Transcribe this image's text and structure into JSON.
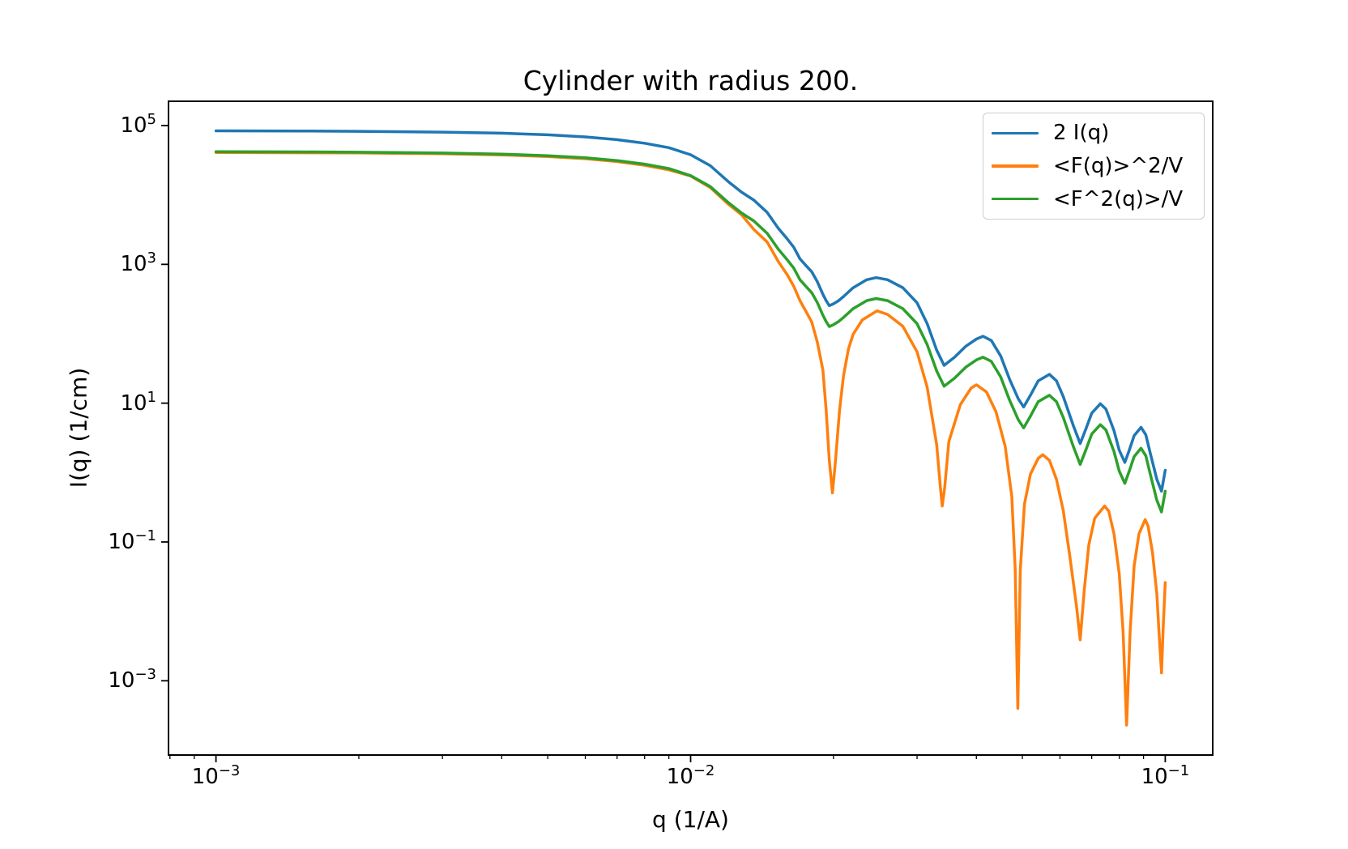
{
  "figure": {
    "title": "Cylinder with radius 200."
  },
  "axes": {
    "xlabel": "q (1/A)",
    "ylabel": "I(q) (1/cm)",
    "x_scale": "log",
    "y_scale": "log",
    "x_log_range": [
      -3.1,
      -0.9
    ],
    "y_log_range": [
      -4.07,
      5.35
    ],
    "x_tick_exponents": [
      -3,
      -2,
      -1
    ],
    "y_tick_exponents": [
      5,
      3,
      1,
      -1,
      -3
    ],
    "x_minor_ticks": true,
    "y_minor_ticks": false,
    "grid": false
  },
  "chart_data": {
    "type": "line",
    "title": "Cylinder with radius 200.",
    "xlabel": "q (1/A)",
    "ylabel": "I(q) (1/cm)",
    "x_scale": "log",
    "y_scale": "log",
    "xlim": [
      0.00079,
      0.126
    ],
    "ylim": [
      8.5e-05,
      224000
    ],
    "legend_position": "upper right",
    "grid": false,
    "series": [
      {
        "name": "2 I(q)",
        "color": "#1f77b4",
        "points": [
          [
            0.001,
            84000
          ],
          [
            0.0015,
            83400
          ],
          [
            0.002,
            82600
          ],
          [
            0.003,
            80400
          ],
          [
            0.004,
            77600
          ],
          [
            0.005,
            73600
          ],
          [
            0.006,
            68600
          ],
          [
            0.007,
            62600
          ],
          [
            0.008,
            55600
          ],
          [
            0.009,
            48000
          ],
          [
            0.01,
            38000
          ],
          [
            0.011,
            26400
          ],
          [
            0.012,
            15600
          ],
          [
            0.0128,
            11000
          ],
          [
            0.0136,
            8400
          ],
          [
            0.0145,
            5600
          ],
          [
            0.0153,
            3320
          ],
          [
            0.016,
            2300
          ],
          [
            0.0165,
            1760
          ],
          [
            0.017,
            1200
          ],
          [
            0.0175,
            960
          ],
          [
            0.018,
            780
          ],
          [
            0.0185,
            560
          ],
          [
            0.019,
            370
          ],
          [
            0.0193,
            300
          ],
          [
            0.0196,
            254
          ],
          [
            0.02,
            270
          ],
          [
            0.0205,
            300
          ],
          [
            0.021,
            344
          ],
          [
            0.022,
            460
          ],
          [
            0.0235,
            600
          ],
          [
            0.0246,
            644
          ],
          [
            0.026,
            600
          ],
          [
            0.028,
            460
          ],
          [
            0.03,
            280
          ],
          [
            0.0315,
            140
          ],
          [
            0.033,
            58
          ],
          [
            0.0342,
            35
          ],
          [
            0.036,
            46
          ],
          [
            0.038,
            66
          ],
          [
            0.04,
            84
          ],
          [
            0.0413,
            92
          ],
          [
            0.043,
            80
          ],
          [
            0.045,
            48
          ],
          [
            0.047,
            22
          ],
          [
            0.049,
            11.6
          ],
          [
            0.0503,
            8.8
          ],
          [
            0.052,
            13
          ],
          [
            0.054,
            21
          ],
          [
            0.057,
            26
          ],
          [
            0.059,
            21
          ],
          [
            0.061,
            12.4
          ],
          [
            0.064,
            4.8
          ],
          [
            0.0662,
            2.62
          ],
          [
            0.068,
            4.2
          ],
          [
            0.07,
            7.2
          ],
          [
            0.073,
            9.8
          ],
          [
            0.075,
            8.2
          ],
          [
            0.078,
            4.0
          ],
          [
            0.08,
            2.1
          ],
          [
            0.0822,
            1.4
          ],
          [
            0.084,
            2.1
          ],
          [
            0.086,
            3.4
          ],
          [
            0.0889,
            4.48
          ],
          [
            0.091,
            3.5
          ],
          [
            0.093,
            1.9
          ],
          [
            0.096,
            0.8
          ],
          [
            0.0982,
            0.54
          ],
          [
            0.1,
            1.08
          ]
        ]
      },
      {
        "name": "<F(q)>^2/V",
        "color": "#ff7f0e",
        "points": [
          [
            0.001,
            41000
          ],
          [
            0.002,
            40300
          ],
          [
            0.003,
            39200
          ],
          [
            0.004,
            37800
          ],
          [
            0.005,
            35800
          ],
          [
            0.006,
            33300
          ],
          [
            0.007,
            30300
          ],
          [
            0.008,
            26800
          ],
          [
            0.009,
            23000
          ],
          [
            0.01,
            18800
          ],
          [
            0.011,
            12800
          ],
          [
            0.012,
            7400
          ],
          [
            0.0128,
            5200
          ],
          [
            0.0136,
            3170
          ],
          [
            0.0145,
            2100
          ],
          [
            0.0153,
            1100
          ],
          [
            0.016,
            700
          ],
          [
            0.0165,
            480
          ],
          [
            0.017,
            300
          ],
          [
            0.0175,
            210
          ],
          [
            0.018,
            147
          ],
          [
            0.0185,
            75
          ],
          [
            0.019,
            30
          ],
          [
            0.0193,
            8
          ],
          [
            0.0196,
            1.5
          ],
          [
            0.0199,
            0.51
          ],
          [
            0.0202,
            1.5
          ],
          [
            0.0206,
            8
          ],
          [
            0.021,
            25
          ],
          [
            0.0215,
            60
          ],
          [
            0.022,
            98
          ],
          [
            0.023,
            158
          ],
          [
            0.0247,
            214
          ],
          [
            0.026,
            190
          ],
          [
            0.028,
            128
          ],
          [
            0.03,
            55
          ],
          [
            0.0315,
            17
          ],
          [
            0.033,
            2.5
          ],
          [
            0.0336,
            0.6
          ],
          [
            0.0339,
            0.33
          ],
          [
            0.0343,
            0.6
          ],
          [
            0.035,
            2.8
          ],
          [
            0.037,
            9.5
          ],
          [
            0.039,
            16.5
          ],
          [
            0.04,
            18.4
          ],
          [
            0.042,
            14.5
          ],
          [
            0.044,
            7.5
          ],
          [
            0.046,
            2.4
          ],
          [
            0.0475,
            0.45
          ],
          [
            0.0483,
            0.04
          ],
          [
            0.0489,
            0.0004
          ],
          [
            0.0495,
            0.04
          ],
          [
            0.0505,
            0.35
          ],
          [
            0.052,
            0.95
          ],
          [
            0.054,
            1.6
          ],
          [
            0.0552,
            1.81
          ],
          [
            0.057,
            1.5
          ],
          [
            0.059,
            0.8
          ],
          [
            0.061,
            0.28
          ],
          [
            0.063,
            0.06
          ],
          [
            0.065,
            0.012
          ],
          [
            0.0662,
            0.0039
          ],
          [
            0.0675,
            0.02
          ],
          [
            0.069,
            0.09
          ],
          [
            0.071,
            0.22
          ],
          [
            0.0745,
            0.33
          ],
          [
            0.076,
            0.28
          ],
          [
            0.078,
            0.13
          ],
          [
            0.08,
            0.035
          ],
          [
            0.0815,
            0.005
          ],
          [
            0.0829,
            0.00023
          ],
          [
            0.0843,
            0.005
          ],
          [
            0.086,
            0.045
          ],
          [
            0.088,
            0.13
          ],
          [
            0.0907,
            0.21
          ],
          [
            0.092,
            0.17
          ],
          [
            0.094,
            0.07
          ],
          [
            0.096,
            0.018
          ],
          [
            0.097,
            0.005
          ],
          [
            0.0982,
            0.0013
          ],
          [
            0.099,
            0.006
          ],
          [
            0.1,
            0.026
          ]
        ]
      },
      {
        "name": "<F^2(q)>/V",
        "color": "#2ca02c",
        "points": [
          [
            0.001,
            42000
          ],
          [
            0.0015,
            41700
          ],
          [
            0.002,
            41300
          ],
          [
            0.003,
            40200
          ],
          [
            0.004,
            38800
          ],
          [
            0.005,
            36800
          ],
          [
            0.006,
            34300
          ],
          [
            0.007,
            31300
          ],
          [
            0.008,
            27800
          ],
          [
            0.009,
            24000
          ],
          [
            0.01,
            19000
          ],
          [
            0.011,
            13200
          ],
          [
            0.012,
            7800
          ],
          [
            0.0128,
            5500
          ],
          [
            0.0136,
            4200
          ],
          [
            0.0145,
            2800
          ],
          [
            0.0153,
            1660
          ],
          [
            0.016,
            1150
          ],
          [
            0.0165,
            880
          ],
          [
            0.017,
            600
          ],
          [
            0.0175,
            480
          ],
          [
            0.018,
            390
          ],
          [
            0.0185,
            280
          ],
          [
            0.019,
            185
          ],
          [
            0.0193,
            150
          ],
          [
            0.0196,
            127
          ],
          [
            0.02,
            135
          ],
          [
            0.0205,
            150
          ],
          [
            0.021,
            172
          ],
          [
            0.022,
            230
          ],
          [
            0.0235,
            300
          ],
          [
            0.0246,
            322
          ],
          [
            0.026,
            300
          ],
          [
            0.028,
            230
          ],
          [
            0.03,
            140
          ],
          [
            0.0315,
            70
          ],
          [
            0.033,
            29
          ],
          [
            0.0342,
            17.5
          ],
          [
            0.036,
            23
          ],
          [
            0.038,
            33
          ],
          [
            0.04,
            42
          ],
          [
            0.0413,
            46
          ],
          [
            0.043,
            40
          ],
          [
            0.045,
            24
          ],
          [
            0.047,
            11
          ],
          [
            0.049,
            5.8
          ],
          [
            0.0503,
            4.4
          ],
          [
            0.052,
            6.5
          ],
          [
            0.054,
            10.5
          ],
          [
            0.057,
            13
          ],
          [
            0.059,
            10.5
          ],
          [
            0.061,
            6.2
          ],
          [
            0.064,
            2.4
          ],
          [
            0.0662,
            1.31
          ],
          [
            0.068,
            2.1
          ],
          [
            0.07,
            3.6
          ],
          [
            0.073,
            4.9
          ],
          [
            0.075,
            4.1
          ],
          [
            0.078,
            2.0
          ],
          [
            0.08,
            1.05
          ],
          [
            0.0822,
            0.7
          ],
          [
            0.084,
            1.05
          ],
          [
            0.086,
            1.7
          ],
          [
            0.0889,
            2.24
          ],
          [
            0.091,
            1.75
          ],
          [
            0.093,
            0.95
          ],
          [
            0.096,
            0.4
          ],
          [
            0.0982,
            0.27
          ],
          [
            0.1,
            0.54
          ]
        ]
      }
    ]
  }
}
